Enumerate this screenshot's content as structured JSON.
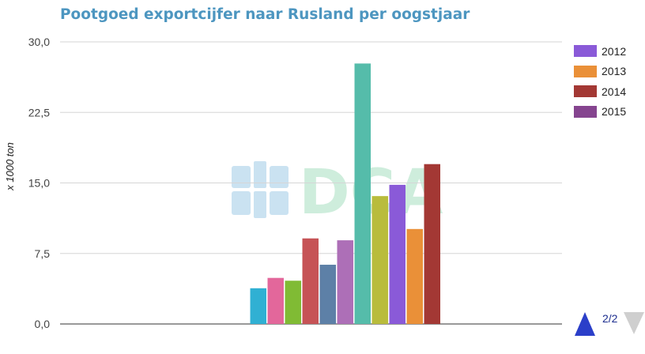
{
  "title": "Pootgoed exportcijfer naar Rusland per oogstjaar",
  "chart_data": {
    "type": "bar",
    "title": "Pootgoed exportcijfer naar Rusland per oogstjaar",
    "xlabel": "",
    "ylabel": "x 1000 ton",
    "ylim": [
      0,
      30
    ],
    "yticks": [
      "0,0",
      "7,5",
      "15,0",
      "22,5",
      "30,0"
    ],
    "ytick_values": [
      0,
      7.5,
      15,
      22.5,
      30
    ],
    "grid": true,
    "legend_position": "right",
    "bar_colors": [
      "#30b0d3",
      "#e3679b",
      "#80bb34",
      "#c65356",
      "#5d80a7",
      "#ad6fb7",
      "#55bcaa",
      "#b9bc3c",
      "#8a5ad8",
      "#ea9038",
      "#a33834"
    ],
    "values": [
      3.8,
      4.9,
      4.6,
      9.1,
      6.3,
      8.9,
      27.7,
      13.6,
      14.8,
      10.1,
      17.0
    ],
    "legend": [
      {
        "label": "2012",
        "color": "#8a5ad8"
      },
      {
        "label": "2013",
        "color": "#ea9038"
      },
      {
        "label": "2014",
        "color": "#a33834"
      },
      {
        "label": "2015",
        "color": "#85448f"
      }
    ]
  },
  "watermark": {
    "text": "DCA",
    "color": "#cfe7f5"
  },
  "pager": {
    "label": "2/2",
    "up_color": "#2b3fc9",
    "down_color": "#cfcfcf"
  }
}
